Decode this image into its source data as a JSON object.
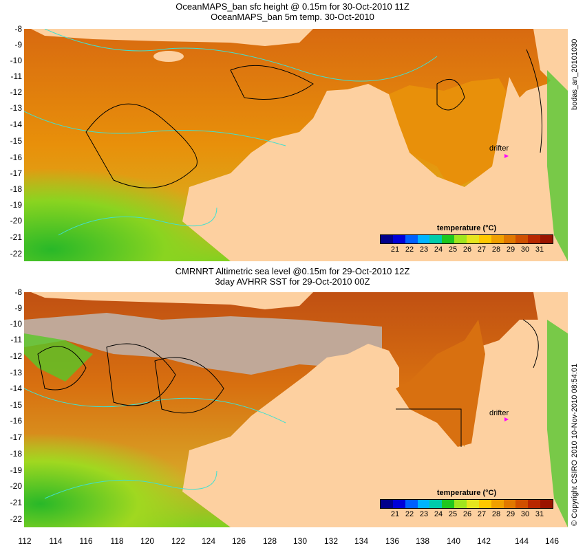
{
  "top_panel": {
    "title_line1": "OceanMAPS_ban sfc height @ 0.15m for 30-Oct-2010 11Z",
    "title_line2": "OceanMAPS_ban 5m temp. 30-Oct-2010",
    "side_label": "bodas_an_20101030",
    "drifter_label": "drifter",
    "legend_title": "temperature (°C)"
  },
  "bottom_panel": {
    "title_line1": "CMRNRT Altimetric sea level  @0.15m  for 29-Oct-2010 12Z",
    "title_line2": "3day AVHRR SST for 29-Oct-2010 00Z",
    "side_label": "© Copyright CSIRO 2010   10-Nov-2010 08:54:01",
    "drifter_label": "drifter",
    "legend_title": "temperature (°C)"
  },
  "axes": {
    "lat_ticks": [
      "-8",
      "-9",
      "-10",
      "-11",
      "-12",
      "-13",
      "-14",
      "-15",
      "-16",
      "-17",
      "-18",
      "-19",
      "-20",
      "-21",
      "-22"
    ],
    "lon_ticks": [
      "112",
      "114",
      "116",
      "118",
      "120",
      "122",
      "124",
      "126",
      "128",
      "130",
      "132",
      "134",
      "136",
      "138",
      "140",
      "142",
      "144",
      "146"
    ]
  },
  "colorbar": {
    "ticks": [
      "21",
      "22",
      "23",
      "24",
      "25",
      "26",
      "27",
      "28",
      "29",
      "30",
      "31"
    ],
    "colors": [
      "#00008b",
      "#0000d8",
      "#0060ff",
      "#00b4ff",
      "#00ccaa",
      "#1ec81e",
      "#a0e61e",
      "#e6e61e",
      "#ffc800",
      "#f0a000",
      "#e07800",
      "#d05000",
      "#b82800",
      "#9a1400"
    ]
  },
  "map_colors": {
    "land": "#fdd0a0",
    "no_data": "#c0a898",
    "ocean_warm": "#e8900a",
    "ocean_hot": "#c85010",
    "ocean_cool": "#58c828",
    "contour_cyan": "#40e0d0",
    "contour_black": "#000000"
  }
}
